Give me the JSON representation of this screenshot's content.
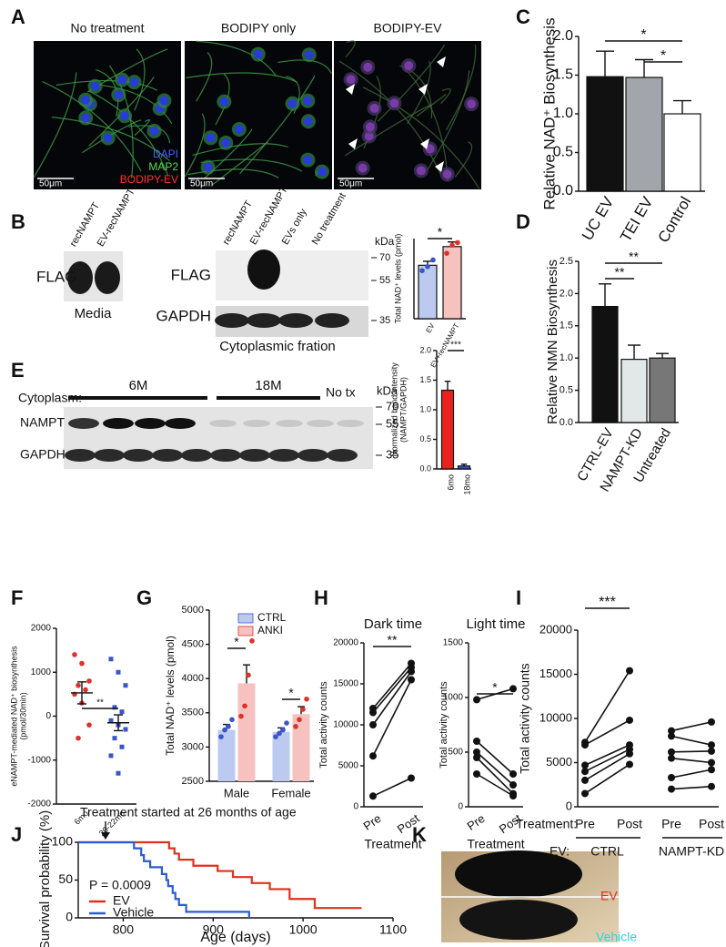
{
  "panel_labels": [
    "A",
    "B",
    "C",
    "D",
    "E",
    "F",
    "G",
    "H",
    "I",
    "J",
    "K"
  ],
  "micrographs": {
    "titles": [
      "No treatment",
      "BODIPY only",
      "BODIPY-EV"
    ],
    "legend": [
      "DAPI",
      "MAP2",
      "BODIPY-EV"
    ],
    "scale_bar": "50μm"
  },
  "blot_b": {
    "left_lanes": [
      "recNAMPT",
      "EV-recNAMPT"
    ],
    "left_label": "FLAG",
    "left_caption": "Media",
    "right_lanes": [
      "recNAMPT",
      "EV-recNAMPT",
      "EVs only",
      "No treatment"
    ],
    "rows": [
      "FLAG",
      "GAPDH"
    ],
    "kda_unit": "kDa",
    "kda": [
      "70",
      "55",
      "35"
    ],
    "caption": "Cytoplasmic fration"
  },
  "blot_e": {
    "row_header": "Cytoplasm:",
    "groups": [
      "6M",
      "18M",
      "No tx"
    ],
    "rows": [
      "NAMPT",
      "GAPDH"
    ],
    "kda_unit": "kDa",
    "kda": [
      "70",
      "55",
      "35"
    ]
  },
  "photo_k": {
    "labels": [
      "EV",
      "Vehicle"
    ]
  },
  "chart_data": [
    {
      "type": "bar",
      "ylabel": "Relative NAD⁺ Biosynthesis",
      "categories": [
        "UC EV",
        "TEI EV",
        "Control"
      ],
      "values": [
        1.48,
        1.47,
        1.0
      ],
      "errors": [
        0.33,
        0.23,
        0.17
      ],
      "colors": [
        "#111111",
        "#a2a6aa",
        "#ffffff"
      ],
      "ylim": [
        0,
        2.0
      ],
      "yticks": [
        {
          "value": 0,
          "label": "0.0"
        },
        {
          "value": 0.5,
          "label": "0.5"
        },
        {
          "value": 1.0,
          "label": "1.0"
        },
        {
          "value": 1.5,
          "label": "1.5"
        },
        {
          "value": 2.0,
          "label": "2.0"
        }
      ],
      "significance": [
        "*",
        "*"
      ]
    },
    {
      "type": "bar",
      "ylabel": "Total NAD⁺ levels (pmol)",
      "categories": [
        "EV",
        "EV+recNAMPT"
      ],
      "values": [
        400,
        540
      ],
      "errors": [
        30,
        35
      ],
      "colors": [
        "#bccaf0",
        "#f6c2c0"
      ],
      "point_colors": [
        "#3a55c8",
        "#e0302a"
      ],
      "points": [
        [
          360,
          390,
          440
        ],
        [
          490,
          550,
          570
        ]
      ],
      "ylim": [
        0,
        600
      ],
      "significance": [
        "*"
      ]
    },
    {
      "type": "bar",
      "ylabel": "Relative NMN Biosynthesis",
      "categories": [
        "CTRL-EV",
        "NAMPT-KD",
        "Untreated"
      ],
      "values": [
        1.8,
        0.98,
        1.0
      ],
      "errors": [
        0.35,
        0.22,
        0.07
      ],
      "colors": [
        "#111111",
        "#e2e8e8",
        "#777777"
      ],
      "ylim": [
        0,
        2.5
      ],
      "yticks": [
        {
          "value": 0,
          "label": "0.0"
        },
        {
          "value": 0.5,
          "label": "0.5"
        },
        {
          "value": 1.0,
          "label": "1.0"
        },
        {
          "value": 1.5,
          "label": "1.5"
        },
        {
          "value": 2.0,
          "label": "2.0"
        },
        {
          "value": 2.5,
          "label": "2.5"
        }
      ],
      "significance": [
        "**",
        "**"
      ]
    },
    {
      "type": "bar",
      "ylabel": [
        "Normalized band intensity",
        "(NAMPT/GAPDH)"
      ],
      "categories": [
        "6mo",
        "18mo"
      ],
      "values": [
        1.33,
        0.05
      ],
      "errors": [
        0.15,
        0.03
      ],
      "colors": [
        "#e8231c",
        "#2f55d4"
      ],
      "ylim": [
        0,
        2.0
      ],
      "yticks": [
        {
          "value": 0,
          "label": "0.0"
        },
        {
          "value": 0.5,
          "label": "0.5"
        },
        {
          "value": 1.0,
          "label": "1.0"
        },
        {
          "value": 1.5,
          "label": "1.5"
        },
        {
          "value": 2.0,
          "label": "2.0"
        }
      ],
      "significance": [
        "***"
      ]
    },
    {
      "type": "dot",
      "ylabel": [
        "eNAMPT-mediated NAD⁺ biosynthesis",
        "(pmol/30min)"
      ],
      "categories": [
        "6mo",
        "20-22mo"
      ],
      "points": [
        [
          1400,
          1200,
          800,
          700,
          600,
          500,
          300,
          -200,
          -500
        ],
        [
          1300,
          1000,
          700,
          200,
          100,
          -100,
          -200,
          -300,
          -500,
          -700,
          -900,
          -1300
        ]
      ],
      "means": [
        530,
        -150
      ],
      "errors": [
        250,
        180
      ],
      "colors": [
        "#e0302a",
        "#3a55c8"
      ],
      "markers": [
        "circle",
        "square"
      ],
      "ylim": [
        -2000,
        2000
      ],
      "yticks": [
        -2000,
        -1000,
        0,
        1000,
        2000
      ],
      "significance": [
        "**"
      ]
    },
    {
      "type": "grouped_bar",
      "ylabel": "Total NAD⁺ levels (pmol)",
      "categories": [
        "Male",
        "Female"
      ],
      "series": [
        {
          "name": "CTRL",
          "color": "#bccaf0",
          "point_color": "#3a55c8",
          "values": [
            3250,
            3220
          ],
          "errors": [
            80,
            60
          ],
          "points": [
            [
              3150,
              3250,
              3300,
              3400
            ],
            [
              3150,
              3200,
              3250,
              3350
            ]
          ]
        },
        {
          "name": "ANKI",
          "color": "#f6c2c0",
          "point_color": "#e0302a",
          "values": [
            3930,
            3480
          ],
          "errors": [
            270,
            110
          ],
          "points": [
            [
              3450,
              3600,
              4050,
              4550
            ],
            [
              3300,
              3400,
              3550,
              3700
            ]
          ]
        }
      ],
      "ylim": [
        2500,
        5000
      ],
      "yticks": [
        2500,
        3000,
        3500,
        4000,
        4500,
        5000
      ],
      "significance": [
        "*",
        "*"
      ]
    },
    {
      "type": "paired",
      "title": "Dark time",
      "ylabel": "Total activity counts",
      "x_labels": [
        "Pre",
        "Post"
      ],
      "xlabel": "Treatment",
      "pre": [
        1300,
        6200,
        10000,
        11500,
        12000
      ],
      "post": [
        3500,
        15500,
        16500,
        17000,
        17500
      ],
      "ylim": [
        0,
        20000
      ],
      "yticks": [
        0,
        5000,
        10000,
        15000,
        20000
      ],
      "significance": [
        "**"
      ]
    },
    {
      "type": "paired",
      "title": "Light time",
      "ylabel": "Total activity counts",
      "x_labels": [
        "Pre",
        "Post"
      ],
      "xlabel": "Treatment",
      "pre": [
        980,
        600,
        500,
        450,
        300
      ],
      "post": [
        1080,
        300,
        200,
        120,
        100
      ],
      "ylim": [
        0,
        1500
      ],
      "yticks": [
        0,
        500,
        1000,
        1500
      ],
      "significance": [
        "*"
      ]
    },
    {
      "type": "paired",
      "ylabel": "Total activity counts",
      "x_labels": [
        "Pre",
        "Post"
      ],
      "treatment_label": "Treatment:",
      "group_label": "EV:",
      "groups": [
        {
          "name": "CTRL",
          "pre": [
            1500,
            3000,
            4000,
            4700,
            7000,
            7300
          ],
          "post": [
            4800,
            6000,
            6500,
            7000,
            9800,
            15400
          ]
        },
        {
          "name": "NAMPT-KD",
          "pre": [
            2000,
            3300,
            5500,
            6200,
            8000,
            8600
          ],
          "post": [
            2300,
            4200,
            5000,
            6300,
            7000,
            9600
          ]
        }
      ],
      "ylim": [
        0,
        20000
      ],
      "yticks": [
        0,
        5000,
        10000,
        15000,
        20000
      ],
      "significance": [
        "***"
      ]
    },
    {
      "type": "step",
      "ylabel": "Survival probability (%)",
      "xlabel": "Age (days)",
      "annotation": "Treatment started at 26 months of age",
      "p_value_text": "P = 0.0009",
      "series": [
        {
          "name": "EV",
          "color": "#e0301e",
          "x": [
            750,
            851,
            857,
            862,
            878,
            905,
            922,
            943,
            963,
            985,
            1013,
            1065
          ],
          "values": [
            100,
            92,
            85,
            77,
            69,
            62,
            54,
            46,
            38,
            25,
            13,
            13
          ]
        },
        {
          "name": "Vehicle",
          "color": "#2d5bd6",
          "x": [
            750,
            812,
            820,
            823,
            830,
            843,
            848,
            850,
            855,
            858,
            862,
            870,
            940
          ],
          "values": [
            100,
            92,
            83,
            75,
            67,
            58,
            50,
            42,
            33,
            25,
            17,
            8,
            0
          ]
        }
      ],
      "xlim": [
        750,
        1100
      ],
      "xticks": [
        800,
        900,
        1000,
        1100
      ],
      "ylim": [
        0,
        100
      ],
      "yticks": [
        0,
        50,
        100
      ]
    }
  ]
}
